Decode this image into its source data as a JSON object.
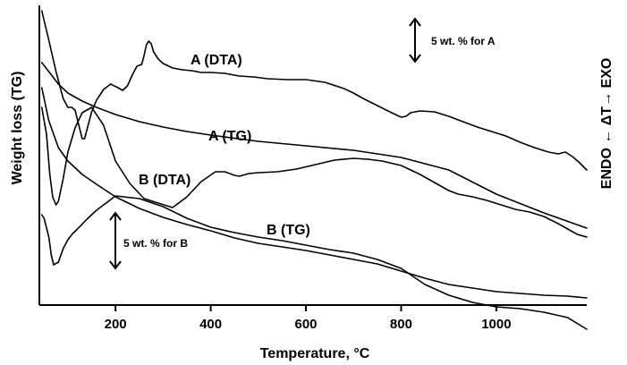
{
  "chart_data": {
    "type": "line",
    "title": "",
    "xlabel": "Temperature, °C",
    "ylabel_left": "Weight loss (TG)",
    "ylabel_right": "ENDO ← ΔT→ EXO",
    "xlim": [
      40,
      1190
    ],
    "xticks": [
      200,
      400,
      600,
      800,
      1000
    ],
    "grid": false,
    "curve_labels": {
      "a_dta": "A (DTA)",
      "a_tg": "A (TG)",
      "b_dta": "B (DTA)",
      "b_tg": "B (TG)"
    },
    "scale_bars": {
      "a": "5 wt. % for A",
      "b": "5 wt. % for B"
    },
    "series": [
      {
        "name": "A (DTA)",
        "x": [
          45,
          60,
          75,
          90,
          100,
          108,
          115,
          122,
          130,
          135,
          140,
          150,
          160,
          175,
          190,
          205,
          215,
          225,
          235,
          245,
          255,
          260,
          265,
          270,
          275,
          280,
          290,
          300,
          320,
          340,
          360,
          380,
          400,
          430,
          460,
          490,
          520,
          560,
          600,
          640,
          680,
          700,
          720,
          750,
          780,
          800,
          810,
          820,
          840,
          870,
          900,
          930,
          960,
          990,
          1020,
          1050,
          1080,
          1110,
          1130,
          1145,
          1160,
          1175,
          1190
        ],
        "y": [
          12,
          45,
          80,
          110,
          120,
          120,
          123,
          138,
          155,
          155,
          145,
          125,
          112,
          100,
          94,
          98,
          101,
          96,
          84,
          74,
          72,
          62,
          50,
          46,
          49,
          58,
          66,
          71,
          76,
          78,
          79,
          81,
          81,
          82,
          85,
          86,
          88,
          89,
          89,
          92,
          99,
          104,
          110,
          118,
          126,
          131,
          130,
          126,
          124,
          125,
          130,
          136,
          142,
          147,
          152,
          159,
          165,
          170,
          172,
          170,
          175,
          182,
          190
        ]
      },
      {
        "name": "A (TG)",
        "x": [
          45,
          60,
          80,
          100,
          130,
          160,
          200,
          250,
          300,
          350,
          400,
          500,
          600,
          700,
          800,
          900,
          1000,
          1100,
          1190
        ],
        "y": [
          70,
          80,
          94,
          104,
          113,
          120,
          128,
          136,
          142,
          147,
          151,
          158,
          163,
          168,
          176,
          190,
          217,
          238,
          255
        ]
      },
      {
        "name": "B (DTA)",
        "x": [
          45,
          55,
          62,
          68,
          75,
          80,
          90,
          100,
          115,
          130,
          150,
          175,
          200,
          230,
          260,
          290,
          320,
          350,
          380,
          410,
          430,
          450,
          460,
          480,
          500,
          540,
          580,
          620,
          660,
          700,
          730,
          760,
          800,
          840,
          880,
          900,
          920,
          950,
          980,
          1010,
          1040,
          1070,
          1100,
          1130,
          1150,
          1170,
          1190
        ],
        "y": [
          120,
          150,
          195,
          220,
          229,
          225,
          200,
          170,
          143,
          126,
          120,
          140,
          180,
          205,
          222,
          227,
          232,
          220,
          203,
          192,
          192,
          196,
          197,
          194,
          193,
          192,
          189,
          184,
          179,
          177,
          178,
          180,
          185,
          195,
          207,
          213,
          217,
          220,
          224,
          229,
          234,
          237,
          242,
          250,
          256,
          262,
          265
        ]
      },
      {
        "name": "B (TG)",
        "x": [
          45,
          50,
          60,
          65,
          70,
          80,
          90,
          100,
          110,
          120,
          140,
          160,
          200,
          250,
          300,
          350,
          400,
          450,
          500,
          550,
          600,
          650,
          700,
          750,
          800,
          850,
          900,
          950,
          1000,
          1050,
          1100,
          1150,
          1190
        ],
        "y": [
          240,
          244,
          265,
          285,
          296,
          293,
          278,
          268,
          261,
          256,
          245,
          235,
          219,
          222,
          231,
          244,
          254,
          260,
          265,
          269,
          274,
          279,
          283,
          290,
          300,
          318,
          330,
          338,
          343,
          345,
          349,
          355,
          368
        ]
      },
      {
        "name": "",
        "x": [
          45,
          60,
          80,
          100,
          130,
          160,
          200,
          250,
          300,
          350,
          400,
          450,
          500,
          550,
          600,
          650,
          700,
          750,
          800,
          850,
          900,
          950,
          1000,
          1050,
          1100,
          1150,
          1190
        ],
        "y": [
          98,
          135,
          165,
          180,
          195,
          206,
          220,
          233,
          243,
          251,
          258,
          266,
          272,
          276,
          280,
          285,
          290,
          295,
          303,
          311,
          318,
          322,
          326,
          328,
          330,
          331,
          333
        ]
      }
    ]
  }
}
